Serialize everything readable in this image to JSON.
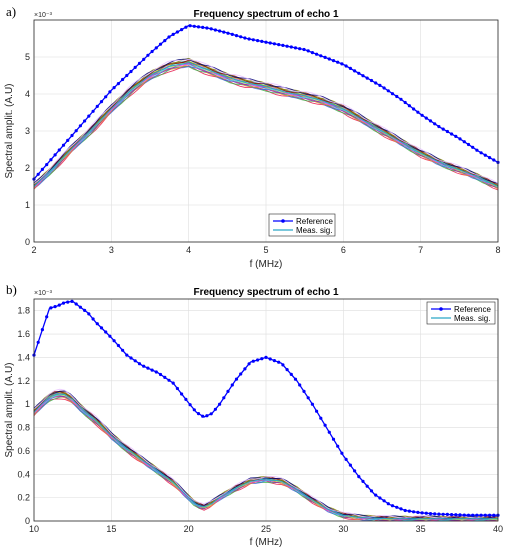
{
  "panels": [
    {
      "label": "a)"
    },
    {
      "label": "b)"
    }
  ],
  "colors": {
    "reference": "#0000ff",
    "meas": "#2aa8c8",
    "grid": "#dedede",
    "axis": "#262626"
  },
  "chart_data": [
    {
      "type": "line",
      "title": "Frequency spectrum of echo 1",
      "xlabel": "f (MHz)",
      "ylabel": "Spectral amplit. (A.U)",
      "exponent": "×10⁻³",
      "xlim": [
        2,
        8
      ],
      "ylim": [
        0,
        6
      ],
      "xticks": [
        2,
        3,
        4,
        5,
        6,
        7,
        8
      ],
      "yticks": [
        0,
        1,
        2,
        3,
        4,
        5
      ],
      "grid": true,
      "legend_position": "bottom-center",
      "series": [
        {
          "name": "Reference",
          "marker": "dots",
          "x": [
            2.0,
            2.25,
            2.5,
            2.75,
            3.0,
            3.25,
            3.5,
            3.75,
            4.0,
            4.25,
            4.5,
            4.75,
            5.0,
            5.25,
            5.5,
            5.75,
            6.0,
            6.25,
            6.5,
            6.75,
            7.0,
            7.25,
            7.5,
            7.75,
            8.0
          ],
          "y": [
            1.7,
            2.3,
            2.9,
            3.5,
            4.1,
            4.6,
            5.1,
            5.55,
            5.85,
            5.78,
            5.65,
            5.5,
            5.4,
            5.3,
            5.2,
            5.0,
            4.8,
            4.5,
            4.2,
            3.85,
            3.45,
            3.1,
            2.8,
            2.45,
            2.15
          ]
        },
        {
          "name": "Meas. sig.",
          "x": [
            2.0,
            2.25,
            2.5,
            2.75,
            3.0,
            3.25,
            3.5,
            3.75,
            4.0,
            4.25,
            4.5,
            4.75,
            5.0,
            5.25,
            5.5,
            5.75,
            6.0,
            6.25,
            6.5,
            6.75,
            7.0,
            7.25,
            7.5,
            7.75,
            8.0
          ],
          "y": [
            1.5,
            2.0,
            2.55,
            3.05,
            3.6,
            4.1,
            4.5,
            4.75,
            4.85,
            4.65,
            4.45,
            4.3,
            4.2,
            4.05,
            3.95,
            3.8,
            3.6,
            3.3,
            3.0,
            2.7,
            2.4,
            2.15,
            1.95,
            1.75,
            1.5
          ]
        }
      ]
    },
    {
      "type": "line",
      "title": "Frequency spectrum of echo 1",
      "xlabel": "f (MHz)",
      "ylabel": "Spectral amplit. (A.U)",
      "exponent": "×10⁻³",
      "xlim": [
        10,
        40
      ],
      "ylim": [
        0,
        1.9
      ],
      "xticks": [
        10,
        15,
        20,
        25,
        30,
        35,
        40
      ],
      "yticks": [
        0,
        0.2,
        0.4,
        0.6,
        0.8,
        1,
        1.2,
        1.4,
        1.6,
        1.8
      ],
      "grid": true,
      "legend_position": "top-right",
      "series": [
        {
          "name": "Reference",
          "marker": "dots",
          "x": [
            10,
            10.5,
            11,
            11.5,
            12,
            12.5,
            13,
            13.5,
            14,
            15,
            16,
            17,
            18,
            19,
            20,
            20.5,
            21,
            21.5,
            22,
            23,
            24,
            25,
            26,
            27,
            28,
            29,
            30,
            31,
            32,
            33,
            34,
            35,
            36,
            37,
            38,
            39,
            40
          ],
          "y": [
            1.42,
            1.62,
            1.82,
            1.84,
            1.87,
            1.88,
            1.83,
            1.78,
            1.7,
            1.57,
            1.42,
            1.33,
            1.27,
            1.18,
            1.01,
            0.93,
            0.89,
            0.92,
            1.0,
            1.2,
            1.36,
            1.4,
            1.35,
            1.2,
            1.0,
            0.78,
            0.56,
            0.38,
            0.23,
            0.14,
            0.09,
            0.07,
            0.06,
            0.055,
            0.05,
            0.05,
            0.05
          ]
        },
        {
          "name": "Meas. sig.",
          "x": [
            10,
            10.5,
            11,
            11.5,
            12,
            12.5,
            13,
            14,
            15,
            16,
            17,
            18,
            19,
            20,
            20.5,
            21,
            21.5,
            22,
            23,
            24,
            25,
            26,
            27,
            28,
            29,
            30,
            31,
            32,
            33,
            34,
            35,
            36,
            37,
            38,
            39,
            40
          ],
          "y": [
            0.93,
            1.0,
            1.06,
            1.09,
            1.08,
            1.04,
            0.97,
            0.86,
            0.73,
            0.62,
            0.52,
            0.43,
            0.33,
            0.2,
            0.14,
            0.12,
            0.15,
            0.2,
            0.28,
            0.34,
            0.36,
            0.34,
            0.27,
            0.18,
            0.1,
            0.05,
            0.03,
            0.025,
            0.02,
            0.02,
            0.02,
            0.02,
            0.02,
            0.02,
            0.02,
            0.02
          ]
        }
      ]
    }
  ]
}
